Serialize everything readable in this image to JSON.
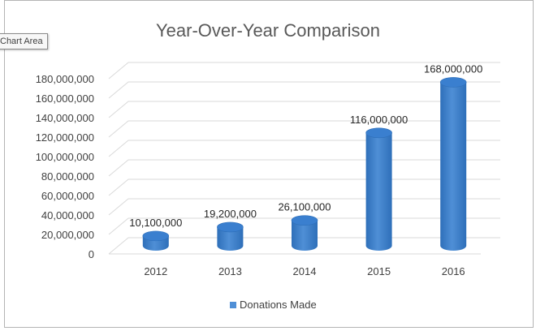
{
  "tooltip": "Chart Area",
  "chart_data": {
    "type": "bar",
    "title": "Year-Over-Year Comparison",
    "categories": [
      "2012",
      "2013",
      "2014",
      "2015",
      "2016"
    ],
    "series": [
      {
        "name": "Donations Made",
        "values": [
          10100000,
          19200000,
          26100000,
          116000000,
          168000000
        ]
      }
    ],
    "data_labels": [
      "10,100,000",
      "19,200,000",
      "26,100,000",
      "116,000,000",
      "168,000,000"
    ],
    "y_ticks": [
      "0",
      "20,000,000",
      "40,000,000",
      "60,000,000",
      "80,000,000",
      "100,000,000",
      "120,000,000",
      "140,000,000",
      "160,000,000",
      "180,000,000"
    ],
    "ylim": [
      0,
      180000000
    ],
    "grid": true,
    "legend": "bottom",
    "colors": {
      "bar": "#4f8fd6",
      "bar_dark": "#2e6fb9",
      "bar_top": "#3a7fcf",
      "grid": "#d9d9d9",
      "text": "#404040",
      "title": "#595959"
    }
  }
}
